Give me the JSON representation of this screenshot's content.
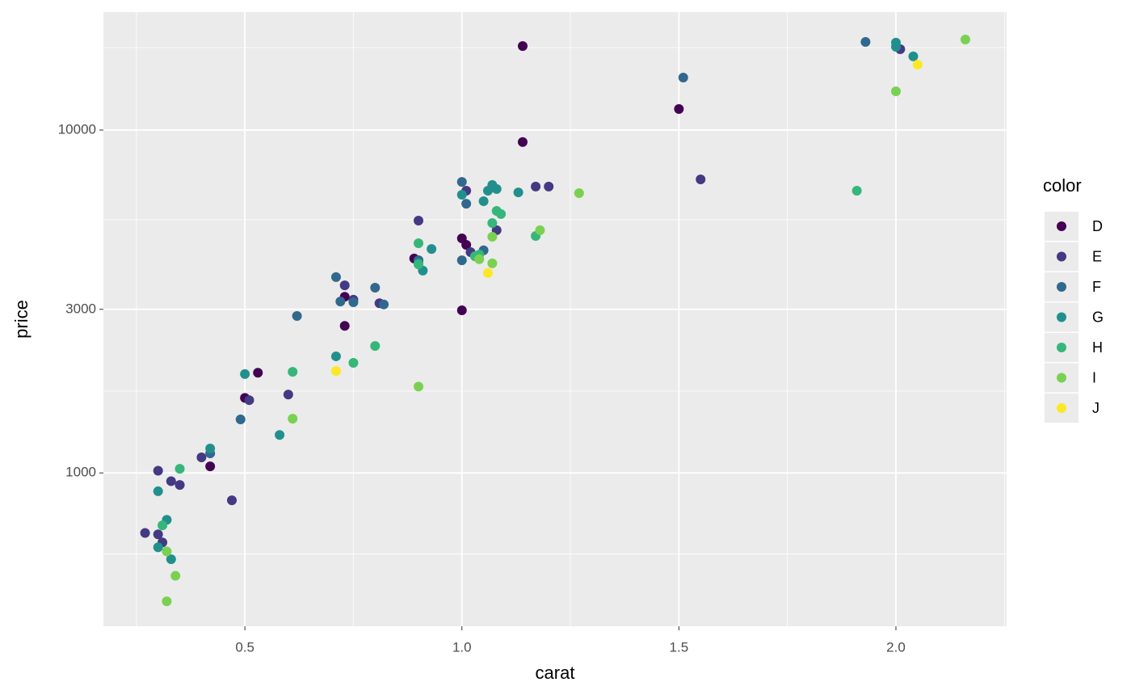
{
  "chart_data": {
    "type": "scatter",
    "x_label": "carat",
    "y_label": "price",
    "legend_title": "color",
    "xlim": [
      0.174,
      2.255
    ],
    "ylim": [
      357,
      22080
    ],
    "y_log": true,
    "grid": true,
    "xticks": [
      0.5,
      {
        "value": 1.0,
        "label": "1.0"
      },
      1.5,
      {
        "value": 2.0,
        "label": "2.0"
      }
    ],
    "yticks": [
      1000,
      3000,
      10000
    ],
    "x_minor_grid": [
      0.25,
      0.75,
      1.25,
      1.75,
      2.25
    ],
    "y_minor_grid": [
      580,
      1732,
      5477,
      17400
    ],
    "series": [
      {
        "name": "D",
        "color": "#440154",
        "x": [
          1.14,
          1.14,
          1.5,
          1.0,
          1.01,
          1.0,
          0.89,
          0.73,
          0.73,
          0.53,
          0.5,
          0.42
        ],
        "values": [
          17580,
          9230,
          11520,
          4830,
          4625,
          2980,
          4220,
          3265,
          2685,
          1960,
          1655,
          1045
        ]
      },
      {
        "name": "E",
        "color": "#443983",
        "x": [
          0.3,
          0.27,
          0.3,
          0.31,
          0.33,
          0.35,
          0.4,
          0.47,
          0.51,
          0.6,
          0.73,
          0.75,
          0.81,
          0.9,
          0.9,
          1.02,
          1.01,
          1.08,
          1.17,
          1.2,
          1.55,
          2.01
        ],
        "values": [
          1015,
          668,
          662,
          627,
          946,
          922,
          1110,
          832,
          1630,
          1693,
          3525,
          3200,
          3125,
          5445,
          4170,
          4405,
          6655,
          5105,
          6840,
          6840,
          7180,
          17210
        ]
      },
      {
        "name": "F",
        "color": "#31688e",
        "x": [
          0.42,
          0.49,
          0.62,
          0.71,
          0.72,
          0.75,
          0.8,
          0.82,
          0.9,
          1.0,
          1.0,
          1.01,
          1.05,
          1.93,
          1.51
        ],
        "values": [
          1140,
          1432,
          2870,
          3725,
          3162,
          3147,
          3470,
          3100,
          4170,
          4170,
          7060,
          6095,
          4460,
          18070,
          14230
        ]
      },
      {
        "name": "G",
        "color": "#21908d",
        "x": [
          0.3,
          0.3,
          0.32,
          0.33,
          0.42,
          0.5,
          0.58,
          0.71,
          0.9,
          0.91,
          0.93,
          1.0,
          1.05,
          1.06,
          1.07,
          1.08,
          1.13,
          2.0,
          2.0,
          2.04
        ],
        "values": [
          884,
          607,
          730,
          560,
          1178,
          1942,
          1290,
          2188,
          4100,
          3890,
          4500,
          6475,
          6200,
          6655,
          6915,
          6730,
          6580,
          17990,
          17500,
          16400
        ]
      },
      {
        "name": "H",
        "color": "#35b779",
        "x": [
          0.31,
          0.35,
          0.61,
          0.75,
          0.8,
          0.9,
          0.9,
          1.03,
          1.07,
          1.08,
          1.09,
          1.17,
          1.91,
          1.04
        ],
        "values": [
          703,
          1028,
          1972,
          2095,
          2345,
          4677,
          4057,
          4285,
          5355,
          5810,
          5690,
          4910,
          6655,
          4335
        ]
      },
      {
        "name": "I",
        "color": "#7ad151",
        "x": [
          0.32,
          0.34,
          0.32,
          0.61,
          0.9,
          1.04,
          1.07,
          1.07,
          1.18,
          1.27,
          2.0,
          2.16
        ],
        "values": [
          590,
          501,
          422,
          1439,
          1786,
          4200,
          4885,
          4085,
          5105,
          6545,
          12975,
          18370
        ]
      },
      {
        "name": "J",
        "color": "#fde725",
        "x": [
          0.71,
          1.06,
          2.05
        ],
        "values": [
          1982,
          3830,
          15520
        ]
      }
    ]
  }
}
